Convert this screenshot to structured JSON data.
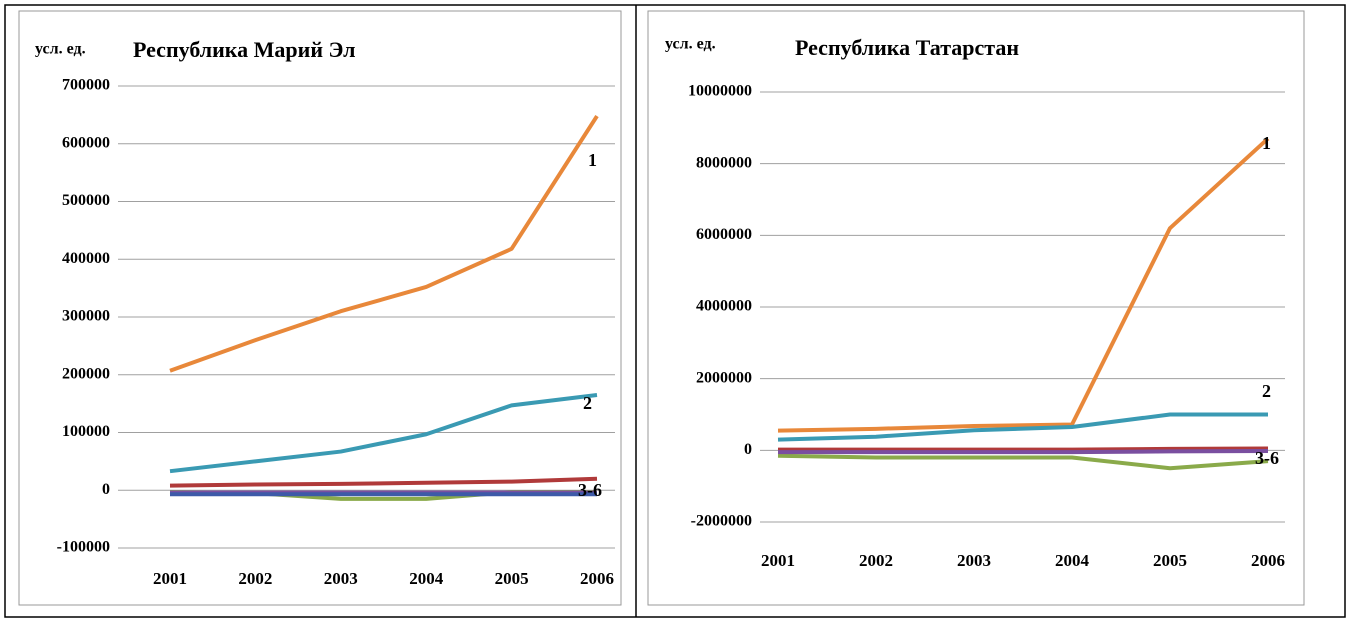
{
  "chart_data": [
    {
      "type": "line",
      "title": "Республика Марий Эл",
      "ylabel": "усл. ед.",
      "categories": [
        "2001",
        "2002",
        "2003",
        "2004",
        "2005",
        "2006"
      ],
      "ylim": [
        -100000,
        700000
      ],
      "yticks": [
        -100000,
        0,
        100000,
        200000,
        300000,
        400000,
        500000,
        600000,
        700000
      ],
      "grid": true,
      "series": [
        {
          "color": "#e8883a",
          "values": [
            207000,
            260000,
            310000,
            352000,
            418000,
            648000
          ]
        },
        {
          "color": "#3a9ab3",
          "values": [
            33000,
            50000,
            67000,
            97000,
            147000,
            165000
          ]
        },
        {
          "color": "#b03a3a",
          "values": [
            8000,
            10000,
            11000,
            13000,
            15000,
            20000
          ]
        },
        {
          "color": "#8aaa4a",
          "values": [
            -3000,
            -5000,
            -15000,
            -15000,
            -3000,
            -3000
          ]
        },
        {
          "color": "#7a4fa0",
          "values": [
            -4000,
            -4000,
            -4000,
            -4000,
            -4000,
            -4000
          ]
        },
        {
          "color": "#3d5aa8",
          "values": [
            -7000,
            -7000,
            -7000,
            -7000,
            -7000,
            -7000
          ]
        }
      ],
      "annotations": [
        "1",
        "2",
        "3-6"
      ]
    },
    {
      "type": "line",
      "title": "Республика Татарстан",
      "ylabel": "усл. ед.",
      "categories": [
        "2001",
        "2002",
        "2003",
        "2004",
        "2005",
        "2006"
      ],
      "ylim": [
        -2000000,
        10000000
      ],
      "yticks": [
        -2000000,
        0,
        2000000,
        4000000,
        6000000,
        8000000,
        10000000
      ],
      "grid": true,
      "series": [
        {
          "color": "#e8883a",
          "values": [
            550000,
            600000,
            680000,
            720000,
            6200000,
            8700000
          ]
        },
        {
          "color": "#3a9ab3",
          "values": [
            300000,
            380000,
            560000,
            650000,
            1000000,
            1000000
          ]
        },
        {
          "color": "#b03a3a",
          "values": [
            20000,
            20000,
            20000,
            20000,
            40000,
            50000
          ]
        },
        {
          "color": "#8aaa4a",
          "values": [
            -150000,
            -200000,
            -200000,
            -200000,
            -500000,
            -300000
          ]
        },
        {
          "color": "#7a4fa0",
          "values": [
            -50000,
            -50000,
            -50000,
            -50000,
            -30000,
            -20000
          ]
        }
      ],
      "annotations": [
        "1",
        "2",
        "3-6"
      ]
    }
  ]
}
